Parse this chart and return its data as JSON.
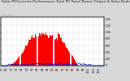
{
  "title": "Solar PV/Inverter Performance Total PV Panel Power Output & Solar Radiation",
  "bg_color": "#d8d8d8",
  "plot_bg": "#ffffff",
  "grid_color": "#b0b0b0",
  "red_fill_color": "#ff0000",
  "blue_dot_color": "#0000bb",
  "n_bars": 120,
  "title_fontsize": 3.2,
  "tick_fontsize": 2.5,
  "right_axis_labels": [
    "1.4k",
    "1.2k",
    "1.0k",
    "800",
    "600",
    "400",
    "200",
    "0"
  ],
  "ylim_max": 1.45,
  "bar_width": 0.9
}
